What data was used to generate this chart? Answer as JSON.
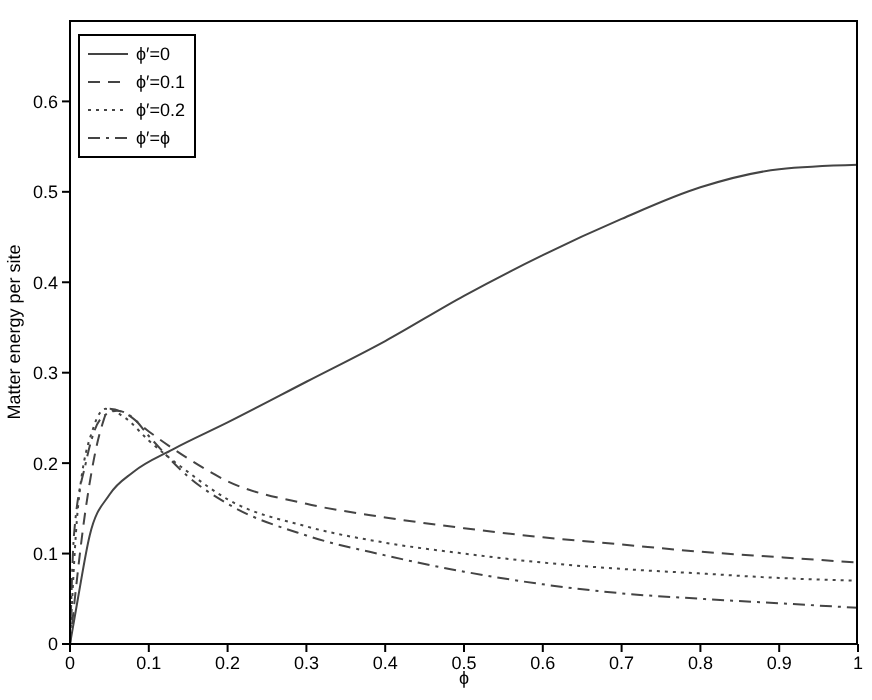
{
  "chart_data": {
    "type": "line",
    "xlabel": "ϕ",
    "ylabel": "Matter energy per site",
    "xlim": [
      0,
      1
    ],
    "ylim": [
      0,
      0.69
    ],
    "xticks": [
      0,
      0.1,
      0.2,
      0.3,
      0.4,
      0.5,
      0.6,
      0.7,
      0.8,
      0.9,
      1
    ],
    "yticks": [
      0,
      0.1,
      0.2,
      0.3,
      0.4,
      0.5,
      0.6
    ],
    "legend": "top left",
    "grid": false,
    "marker": "none",
    "series": [
      {
        "name": "ϕ′=0",
        "color": "#444444",
        "line_style": "solid",
        "x": [
          0,
          0.01,
          0.025,
          0.05,
          0.08,
          0.13,
          0.2,
          0.3,
          0.4,
          0.5,
          0.6,
          0.7,
          0.8,
          0.9,
          1
        ],
        "values": [
          0,
          0.05,
          0.12,
          0.165,
          0.19,
          0.215,
          0.245,
          0.29,
          0.335,
          0.385,
          0.43,
          0.47,
          0.505,
          0.525,
          0.53
        ]
      },
      {
        "name": "ϕ′=0.1",
        "color": "#444444",
        "line_style": "dashed",
        "x": [
          0,
          0.02,
          0.04,
          0.05,
          0.07,
          0.1,
          0.15,
          0.2,
          0.3,
          0.4,
          0.5,
          0.6,
          0.7,
          0.8,
          0.9,
          1
        ],
        "values": [
          0,
          0.15,
          0.24,
          0.26,
          0.255,
          0.235,
          0.205,
          0.18,
          0.155,
          0.14,
          0.128,
          0.118,
          0.11,
          0.102,
          0.096,
          0.09
        ]
      },
      {
        "name": "ϕ′=0.2",
        "color": "#444444",
        "line_style": "dotted",
        "x": [
          0,
          0.01,
          0.03,
          0.045,
          0.07,
          0.1,
          0.15,
          0.2,
          0.3,
          0.4,
          0.5,
          0.6,
          0.7,
          0.8,
          0.9,
          1
        ],
        "values": [
          0,
          0.15,
          0.24,
          0.26,
          0.25,
          0.225,
          0.19,
          0.16,
          0.13,
          0.112,
          0.1,
          0.09,
          0.083,
          0.078,
          0.073,
          0.07
        ]
      },
      {
        "name": "ϕ′=ϕ",
        "color": "#444444",
        "line_style": "dashdot",
        "x": [
          0,
          0.005,
          0.02,
          0.04,
          0.06,
          0.08,
          0.1,
          0.15,
          0.2,
          0.3,
          0.4,
          0.5,
          0.6,
          0.7,
          0.8,
          0.9,
          1
        ],
        "values": [
          0,
          0.12,
          0.2,
          0.25,
          0.258,
          0.25,
          0.23,
          0.185,
          0.155,
          0.12,
          0.098,
          0.08,
          0.066,
          0.056,
          0.05,
          0.045,
          0.04
        ]
      }
    ]
  }
}
